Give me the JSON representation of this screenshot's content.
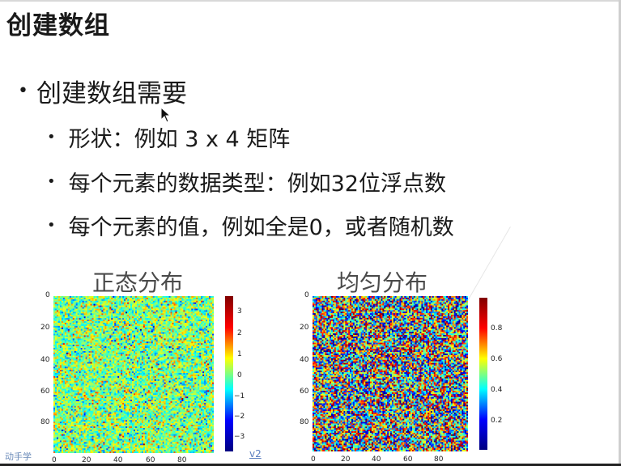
{
  "slide": {
    "title": "创建数组",
    "bullet_main": "创建数组需要",
    "sub_bullets": [
      "形状：例如 3 x 4 矩阵",
      "每个元素的数据类型：例如32位浮点数",
      "每个元素的值，例如全是0，或者随机数"
    ],
    "bullet_glyph": "•"
  },
  "plots": {
    "normal": {
      "title": "正态分布",
      "y_ticks": [
        "0",
        "20",
        "40",
        "60",
        "80"
      ],
      "x_ticks": [
        "0",
        "20",
        "40",
        "60",
        "80"
      ],
      "colorbar_ticks": [
        "3",
        "2",
        "1",
        "0",
        "−1",
        "−2",
        "−3"
      ],
      "colormap": "jet"
    },
    "uniform": {
      "title": "均匀分布",
      "y_ticks": [
        "0",
        "20",
        "40",
        "60",
        "80"
      ],
      "x_ticks": [
        "0",
        "20",
        "40",
        "60",
        "80"
      ],
      "colorbar_ticks": [
        "0.8",
        "0.6",
        "0.4",
        "0.2"
      ],
      "colormap": "jet"
    }
  },
  "footer": {
    "left": "动手学",
    "right": "v2"
  }
}
